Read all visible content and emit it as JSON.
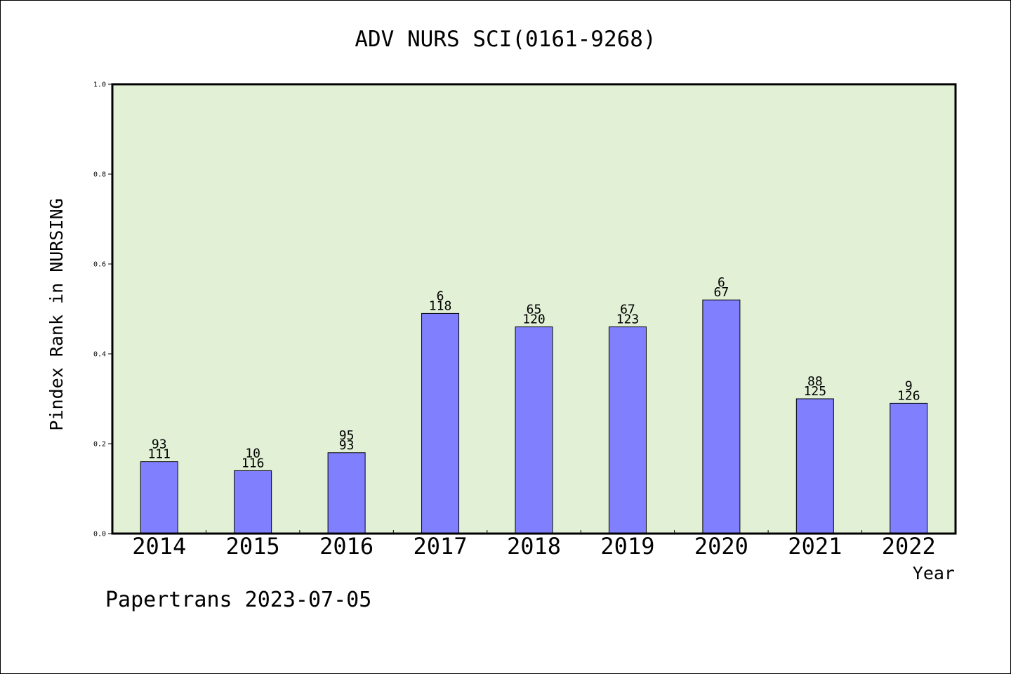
{
  "chart_data": {
    "type": "bar",
    "title": "ADV NURS SCI(0161-9268)",
    "xlabel": "Year",
    "ylabel": "Pindex Rank in NURSING",
    "ylim": [
      0.0,
      1.0
    ],
    "yticks": [
      "0.0",
      "0.2",
      "0.4",
      "0.6",
      "0.8",
      "1.0"
    ],
    "yticks_values": [
      0.0,
      0.2,
      0.4,
      0.6,
      0.8,
      1.0
    ],
    "categories": [
      "2014",
      "2015",
      "2016",
      "2017",
      "2018",
      "2019",
      "2020",
      "2021",
      "2022"
    ],
    "values": [
      0.16,
      0.14,
      0.18,
      0.49,
      0.46,
      0.46,
      0.52,
      0.3,
      0.29
    ],
    "label_top": [
      "93",
      "10",
      "95",
      "6",
      "65",
      "67",
      "6",
      "88",
      "9"
    ],
    "label_bottom": [
      "111",
      "116",
      "93",
      "118",
      "120",
      "123",
      "67",
      "125",
      "126"
    ],
    "grid": false,
    "legend": "none",
    "colors": {
      "bar_fill": "#8080ff",
      "bar_stroke": "#000000",
      "plot_bg": "#e2f0d6"
    }
  },
  "footer": "Papertrans 2023-07-05"
}
